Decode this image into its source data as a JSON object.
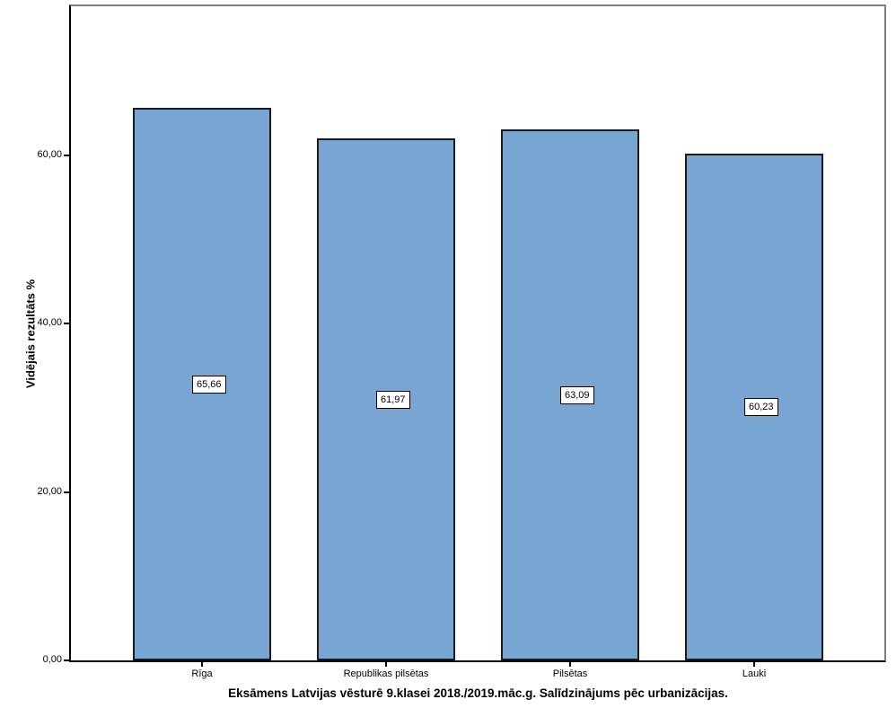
{
  "chart_data": {
    "type": "bar",
    "title": "Eksāmens Latvijas vēsturē 9.klasei 2018./2019.māc.g. Salīdzinājums pēc urbanizācijas.",
    "xlabel": "",
    "ylabel": "Vidējais rezultāts %",
    "categories": [
      "Rīga",
      "Republikas pilsētas",
      "Pilsētas",
      "Lauki"
    ],
    "values": [
      65.66,
      61.97,
      63.09,
      60.23
    ],
    "value_labels": [
      "65,66",
      "61,97",
      "63,09",
      "60,23"
    ],
    "yticks": [
      {
        "value": 0,
        "label": "0,00"
      },
      {
        "value": 20,
        "label": "20,00"
      },
      {
        "value": 40,
        "label": "40,00"
      },
      {
        "value": 60,
        "label": "60,00"
      }
    ],
    "ylim": [
      0,
      77.7
    ],
    "grid": false,
    "legend": "none",
    "decimal_separator": ",",
    "bar_color": "#79A5D3",
    "bar_border_color": "#1a1a1a",
    "frame_color": "#808080",
    "axis_color": "#000000"
  }
}
